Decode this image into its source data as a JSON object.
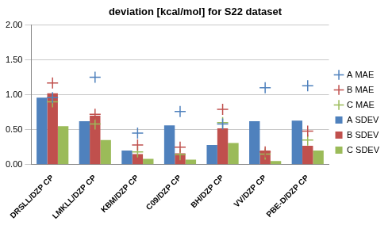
{
  "chart_data": {
    "type": "bar",
    "title": "deviation [kcal/mol] for S22 dataset",
    "categories": [
      "DRSLL/DZP CP",
      "LMKLL/DZP CP",
      "KBM/DZP CP",
      "C09/DZP CP",
      "BH/DZP CP",
      "VV/DZP CP",
      "PBE-D/DZP CP"
    ],
    "series": [
      {
        "name": "A SDEV",
        "type": "bar",
        "color": "#4f81bd",
        "values": [
          0.96,
          0.62,
          0.2,
          0.56,
          0.28,
          0.62,
          0.63
        ]
      },
      {
        "name": "B SDEV",
        "type": "bar",
        "color": "#c0504d",
        "values": [
          1.02,
          0.7,
          0.15,
          0.16,
          0.52,
          0.2,
          0.27
        ]
      },
      {
        "name": "C SDEV",
        "type": "bar",
        "color": "#9bbb59",
        "values": [
          0.55,
          0.35,
          0.08,
          0.07,
          0.31,
          0.05,
          0.2
        ]
      },
      {
        "name": "A MAE",
        "type": "scatter",
        "marker": "cross",
        "color": "#4f81bd",
        "values": [
          0.96,
          1.25,
          0.45,
          0.76,
          0.58,
          1.1,
          1.13
        ]
      },
      {
        "name": "B MAE",
        "type": "scatter",
        "marker": "cross",
        "color": "#c0504d",
        "values": [
          1.17,
          0.72,
          0.28,
          0.25,
          0.79,
          0.18,
          0.48
        ]
      },
      {
        "name": "C MAE",
        "type": "scatter",
        "marker": "cross",
        "color": "#9bbb59",
        "values": [
          0.9,
          0.58,
          0.18,
          0.14,
          0.6,
          0.15,
          0.35
        ]
      }
    ],
    "ylim": [
      0,
      2
    ],
    "yticks": [
      {
        "value": 0,
        "label": "0.00"
      },
      {
        "value": 0.5,
        "label": "0.50"
      },
      {
        "value": 1,
        "label": "1.00"
      },
      {
        "value": 1.5,
        "label": "1.50"
      },
      {
        "value": 2,
        "label": "2.00"
      }
    ],
    "grid": true,
    "legend": "right"
  }
}
